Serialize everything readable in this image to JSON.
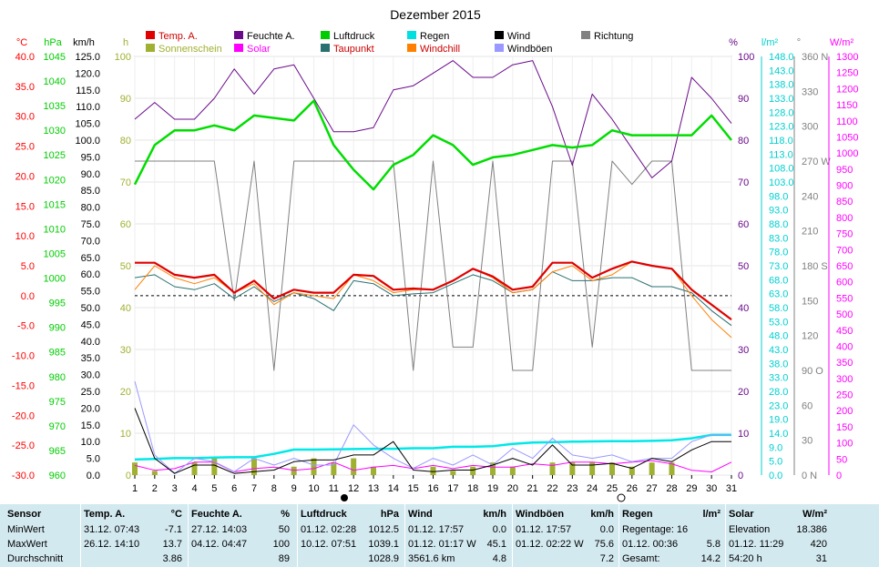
{
  "title": "Dezember 2015",
  "legend": [
    {
      "label": "Temp. A.",
      "color": "#e00000"
    },
    {
      "label": "Feuchte A.",
      "color": "#6a0a8a"
    },
    {
      "label": "Luftdruck",
      "color": "#00cc00"
    },
    {
      "label": "Regen",
      "color": "#00e0e0"
    },
    {
      "label": "Wind",
      "color": "#000000"
    },
    {
      "label": "Richtung",
      "color": "#808080"
    },
    {
      "label": "Sonnenschein",
      "color": "#a0b030"
    },
    {
      "label": "Solar",
      "color": "#ff00ff"
    },
    {
      "label": "Taupunkt",
      "color": "#2a7070"
    },
    {
      "label": "Windchill",
      "color": "#ff8000"
    },
    {
      "label": "Windböen",
      "color": "#9999ff"
    }
  ],
  "axes": {
    "temp": {
      "unit": "°C",
      "ticks": [
        "40.0",
        "35.0",
        "30.0",
        "25.0",
        "20.0",
        "15.0",
        "10.0",
        "5.0",
        "0.0",
        "-5.0",
        "-10.0",
        "-15.0",
        "-20.0",
        "-25.0",
        "-30.0"
      ],
      "color": "#ff0000"
    },
    "pressure": {
      "unit": "hPa",
      "ticks": [
        "1045",
        "1040",
        "1035",
        "1030",
        "1025",
        "1020",
        "1015",
        "1010",
        "1005",
        "1000",
        "995",
        "990",
        "985",
        "980",
        "975",
        "970",
        "965",
        "960"
      ],
      "color": "#00cc00"
    },
    "wind": {
      "unit": "km/h",
      "ticks": [
        "125.0",
        "120.0",
        "115.0",
        "110.0",
        "105.0",
        "100.0",
        "95.0",
        "90.0",
        "85.0",
        "80.0",
        "75.0",
        "70.0",
        "65.0",
        "60.0",
        "55.0",
        "50.0",
        "45.0",
        "40.0",
        "35.0",
        "30.0",
        "25.0",
        "20.0",
        "15.0",
        "10.0",
        "5.0",
        "0.0"
      ],
      "color": "#000000"
    },
    "sun": {
      "unit": "h",
      "ticks": [
        "100",
        "90",
        "80",
        "70",
        "60",
        "50",
        "40",
        "30",
        "20",
        "10",
        "0"
      ],
      "color": "#a0b030"
    },
    "humidity": {
      "unit": "%",
      "ticks": [
        "100",
        "90",
        "80",
        "70",
        "60",
        "50",
        "40",
        "30",
        "20",
        "10",
        "0"
      ],
      "color": "#6a0a8a"
    },
    "rain": {
      "unit": "l/m²",
      "ticks": [
        "148.0",
        "143.0",
        "138.0",
        "133.0",
        "128.0",
        "123.0",
        "118.0",
        "113.0",
        "108.0",
        "103.0",
        "98.0",
        "93.0",
        "88.0",
        "83.0",
        "78.0",
        "73.0",
        "68.0",
        "63.0",
        "58.0",
        "53.0",
        "48.0",
        "43.0",
        "38.0",
        "33.0",
        "28.0",
        "23.0",
        "19.0",
        "14.0",
        "9.0",
        "5.0",
        "0.0"
      ],
      "color": "#00d0d0"
    },
    "direction": {
      "unit": "°",
      "ticks": [
        "360 N",
        "330",
        "300",
        "270 W",
        "240",
        "210",
        "180 S",
        "150",
        "120",
        "90 O",
        "60",
        "30",
        "0 N"
      ],
      "color": "#808080"
    },
    "solar": {
      "unit": "W/m²",
      "ticks": [
        "1300",
        "1250",
        "1200",
        "1150",
        "1100",
        "1050",
        "1000",
        "950",
        "900",
        "850",
        "800",
        "750",
        "700",
        "650",
        "600",
        "550",
        "500",
        "450",
        "400",
        "350",
        "300",
        "250",
        "200",
        "150",
        "100",
        "50",
        "0"
      ],
      "color": "#ff00ff"
    }
  },
  "days": [
    "1",
    "2",
    "3",
    "4",
    "5",
    "6",
    "7",
    "8",
    "9",
    "10",
    "11",
    "12",
    "13",
    "14",
    "15",
    "16",
    "17",
    "18",
    "19",
    "20",
    "21",
    "22",
    "23",
    "24",
    "25",
    "26",
    "27",
    "28",
    "29",
    "30",
    "31"
  ],
  "chart_data": {
    "type": "line",
    "title": "Dezember 2015",
    "x": [
      1,
      2,
      3,
      4,
      5,
      6,
      7,
      8,
      9,
      10,
      11,
      12,
      13,
      14,
      15,
      16,
      17,
      18,
      19,
      20,
      21,
      22,
      23,
      24,
      25,
      26,
      27,
      28,
      29,
      30,
      31
    ],
    "series": [
      {
        "name": "Temp. A.",
        "axis": "°C",
        "values": [
          5.5,
          5.5,
          3.5,
          3.0,
          3.5,
          0.5,
          2.5,
          -0.5,
          1.0,
          0.5,
          0.5,
          3.5,
          3.3,
          1.0,
          1.2,
          1.0,
          2.5,
          4.5,
          3.2,
          1.0,
          1.5,
          5.5,
          5.5,
          3.0,
          4.5,
          5.7,
          5.0,
          4.5,
          1.0,
          -1.5,
          -4.0
        ]
      },
      {
        "name": "Feuchte A.",
        "axis": "%",
        "values": [
          85,
          89,
          85,
          85,
          90,
          97,
          91,
          97,
          98,
          90,
          82,
          82,
          83,
          92,
          93,
          96,
          99,
          95,
          95,
          98,
          99,
          88,
          74,
          91,
          85,
          78,
          71,
          75,
          95,
          90,
          84
        ]
      },
      {
        "name": "Luftdruck",
        "axis": "hPa",
        "values": [
          1019,
          1027,
          1030,
          1030,
          1031,
          1030,
          1033,
          1032.5,
          1032,
          1036,
          1027,
          1022,
          1018,
          1023,
          1025,
          1029,
          1027,
          1023,
          1024.5,
          1025,
          1026,
          1027,
          1026.5,
          1027,
          1030,
          1029,
          1029,
          1029,
          1029,
          1033,
          1028
        ]
      },
      {
        "name": "Regen",
        "axis": "l/m²",
        "values": [
          5.5,
          5.7,
          6.0,
          6.0,
          6.2,
          6.3,
          6.3,
          7.5,
          9.0,
          9.0,
          9.1,
          9.2,
          9.3,
          9.3,
          9.5,
          9.5,
          10.0,
          10.0,
          10.2,
          11.0,
          11.5,
          11.6,
          11.8,
          11.9,
          12.0,
          12.0,
          12.1,
          12.3,
          13.0,
          14.2,
          14.2
        ]
      },
      {
        "name": "Wind",
        "axis": "km/h",
        "values": [
          20,
          5,
          0.5,
          3,
          3,
          0.5,
          1,
          1.5,
          4,
          4.5,
          4.5,
          6,
          6,
          10,
          1.5,
          1,
          1.5,
          1.5,
          3,
          5,
          3,
          9,
          3,
          3,
          3.5,
          2,
          5,
          4,
          7.5,
          10,
          10
        ]
      },
      {
        "name": "Richtung",
        "axis": "°",
        "values": [
          270,
          270,
          270,
          270,
          270,
          150,
          270,
          90,
          270,
          270,
          270,
          270,
          270,
          270,
          90,
          270,
          110,
          110,
          270,
          90,
          90,
          270,
          270,
          110,
          270,
          250,
          270,
          270,
          90,
          90,
          90
        ]
      },
      {
        "name": "Sonnenschein",
        "axis": "h",
        "values": [
          3,
          1,
          0,
          3,
          4,
          0,
          4,
          0,
          2,
          4,
          3,
          4,
          2,
          0,
          0,
          2,
          1,
          2,
          3,
          2,
          0,
          3,
          3,
          3,
          3,
          2,
          3,
          3,
          0,
          0,
          0
        ]
      },
      {
        "name": "Solar",
        "axis": "W/m²",
        "values": [
          30,
          15,
          20,
          40,
          40,
          10,
          20,
          25,
          15,
          20,
          40,
          15,
          25,
          30,
          20,
          30,
          20,
          30,
          25,
          25,
          35,
          30,
          40,
          40,
          35,
          40,
          45,
          35,
          15,
          10,
          40
        ]
      },
      {
        "name": "Taupunkt",
        "axis": "°C",
        "values": [
          3.0,
          3.5,
          1.5,
          1.0,
          2.0,
          -0.5,
          1.5,
          -1.0,
          0.5,
          -0.5,
          -2.5,
          2.5,
          2.0,
          0.0,
          0.3,
          0.5,
          2.0,
          3.5,
          2.5,
          0.5,
          1.0,
          4.0,
          2.5,
          2.5,
          3.0,
          3.0,
          1.5,
          1.5,
          0.5,
          -2.5,
          -5.0
        ]
      },
      {
        "name": "Windchill",
        "axis": "°C",
        "values": [
          1.0,
          5.0,
          3.0,
          2.0,
          3.0,
          0.5,
          2.0,
          -1.5,
          0.5,
          0.0,
          -0.5,
          3.5,
          2.5,
          0.5,
          1.0,
          1.0,
          2.5,
          4.5,
          3.0,
          0.5,
          1.0,
          4.0,
          5.0,
          2.5,
          3.5,
          5.7,
          5.0,
          4.5,
          0.0,
          -4.0,
          -7.0
        ]
      },
      {
        "name": "Windböen",
        "axis": "km/h",
        "values": [
          28,
          6,
          0.5,
          5,
          4,
          1,
          5,
          3,
          5,
          3,
          3,
          15,
          9,
          5,
          2,
          5,
          3,
          6,
          3,
          8,
          5,
          11,
          6,
          5,
          6,
          4,
          5,
          5,
          10,
          12,
          12
        ]
      }
    ],
    "ylim": {
      "°C": [
        -30,
        40
      ],
      "hPa": [
        960,
        1045
      ],
      "km/h": [
        0,
        125
      ],
      "h": [
        0,
        100
      ],
      "%": [
        0,
        100
      ],
      "l/m²": [
        0,
        148
      ],
      "°": [
        0,
        360
      ],
      "W/m²": [
        0,
        1300
      ]
    },
    "reference_line": {
      "axis": "°C",
      "value": 0
    },
    "legend_position": "top",
    "grid": true
  },
  "stats": {
    "columns": [
      {
        "title": "Sensor",
        "unit": "",
        "rows": [
          {
            "label": "MinWert"
          },
          {
            "label": "MaxWert"
          },
          {
            "label": "Durchschnitt"
          }
        ]
      },
      {
        "title": "Temp. A.",
        "unit": "°C",
        "rows": [
          {
            "label": "31.12.  07:43",
            "value": "-7.1"
          },
          {
            "label": "26.12.  14:10",
            "value": "13.7"
          },
          {
            "label": "",
            "value": "3.86"
          }
        ]
      },
      {
        "title": "Feuchte A.",
        "unit": "%",
        "rows": [
          {
            "label": "27.12.  14:03",
            "value": "50"
          },
          {
            "label": "04.12.  04:47",
            "value": "100"
          },
          {
            "label": "",
            "value": "89"
          }
        ]
      },
      {
        "title": "Luftdruck",
        "unit": "hPa",
        "rows": [
          {
            "label": "01.12.  02:28",
            "value": "1012.5"
          },
          {
            "label": "10.12.  07:51",
            "value": "1039.1"
          },
          {
            "label": "",
            "value": "1028.9"
          }
        ]
      },
      {
        "title": "Wind",
        "unit": "km/h",
        "rows": [
          {
            "label": "01.12.  17:57",
            "value": "0.0"
          },
          {
            "label": "01.12.  01:17  W",
            "value": "45.1"
          },
          {
            "label": "3561.6 km",
            "value": "4.8"
          }
        ]
      },
      {
        "title": "Windböen",
        "unit": "km/h",
        "rows": [
          {
            "label": "01.12.  17:57",
            "value": "0.0"
          },
          {
            "label": "01.12.  02:22  W",
            "value": "75.6"
          },
          {
            "label": "",
            "value": "7.2"
          }
        ]
      },
      {
        "title": "Regen",
        "unit": "l/m²",
        "rows": [
          {
            "label": "Regentage: 16",
            "value": ""
          },
          {
            "label": "01.12.  00:36",
            "value": "5.8"
          },
          {
            "label": "Gesamt:",
            "value": "14.2"
          }
        ]
      },
      {
        "title": "Solar",
        "unit": "W/m²",
        "rows": [
          {
            "label": "Elevation",
            "value": "18.386"
          },
          {
            "label": "01.12.  11:29",
            "value": "420"
          },
          {
            "label": "54:20 h",
            "value": "31"
          }
        ]
      }
    ]
  }
}
